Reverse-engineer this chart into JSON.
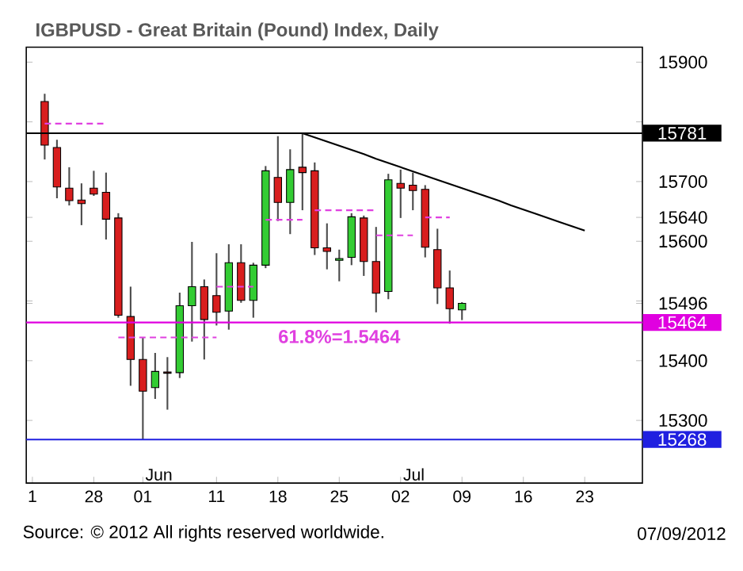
{
  "chart_data": {
    "type": "candlestick",
    "title": "IGBPUSD - Great Britain (Pound) Index, Daily",
    "categories": [
      "1",
      null,
      null,
      null,
      null,
      "28",
      null,
      null,
      null,
      "01",
      null,
      null,
      null,
      null,
      null,
      "11",
      null,
      null,
      null,
      null,
      "18",
      null,
      null,
      null,
      null,
      "25",
      null,
      null,
      null,
      null,
      "02",
      null,
      null,
      null,
      null,
      "09",
      null,
      null,
      null,
      null,
      "16",
      null,
      null,
      null,
      null,
      "23",
      null,
      null,
      null,
      null
    ],
    "ohlc": [
      null,
      [
        15834,
        15847,
        15737,
        15761
      ],
      [
        15757,
        15770,
        15672,
        15691
      ],
      [
        15689,
        15724,
        15660,
        15668
      ],
      [
        15669,
        15697,
        15627,
        15663
      ],
      [
        15689,
        15718,
        15676,
        15679
      ],
      [
        15682,
        15715,
        15603,
        15637
      ],
      [
        15639,
        15647,
        15472,
        15476
      ],
      [
        15474,
        15524,
        15358,
        15402
      ],
      [
        15402,
        15439,
        15268,
        15349
      ],
      [
        15355,
        15413,
        15336,
        15382
      ],
      [
        15381,
        15406,
        15318,
        15379
      ],
      [
        15380,
        15514,
        15371,
        15492
      ],
      [
        15492,
        15599,
        15432,
        15524
      ],
      [
        15524,
        15536,
        15402,
        15469
      ],
      [
        15509,
        15580,
        15459,
        15481
      ],
      [
        15483,
        15595,
        15452,
        15564
      ],
      [
        15564,
        15595,
        15497,
        15501
      ],
      [
        15501,
        15564,
        15472,
        15560
      ],
      [
        15560,
        15726,
        15555,
        15718
      ],
      [
        15707,
        15776,
        15634,
        15665
      ],
      [
        15665,
        15754,
        15612,
        15720
      ],
      [
        15724,
        15781,
        15652,
        15715
      ],
      [
        15718,
        15732,
        15577,
        15589
      ],
      [
        15589,
        15630,
        15553,
        15583
      ],
      [
        15568,
        15586,
        15533,
        15571
      ],
      [
        15573,
        15647,
        15560,
        15641
      ],
      [
        15639,
        15643,
        15542,
        15566
      ],
      [
        15566,
        15624,
        15481,
        15513
      ],
      [
        15516,
        15713,
        15503,
        15703
      ],
      [
        15697,
        15720,
        15639,
        15689
      ],
      [
        15694,
        15715,
        15652,
        15685
      ],
      [
        15687,
        15694,
        15573,
        15590
      ],
      [
        15586,
        15621,
        15495,
        15522
      ],
      [
        15522,
        15551,
        15462,
        15487
      ],
      [
        15485,
        15498,
        15468,
        15496
      ],
      null,
      null,
      null,
      null,
      null,
      null,
      null,
      null,
      null,
      null,
      null,
      null,
      null,
      null
    ],
    "colors": [
      null,
      "#d81e1e",
      "#d81e1e",
      "#d81e1e",
      "#d81e1e",
      "#d81e1e",
      "#d81e1e",
      "#d81e1e",
      "#d81e1e",
      "#d81e1e",
      "#33cc33",
      "#d81e1e",
      "#33cc33",
      "#33cc33",
      "#d81e1e",
      "#d81e1e",
      "#33cc33",
      "#d81e1e",
      "#33cc33",
      "#33cc33",
      "#d81e1e",
      "#33cc33",
      "#d81e1e",
      "#d81e1e",
      "#d81e1e",
      "#33cc33",
      "#33cc33",
      "#d81e1e",
      "#d81e1e",
      "#33cc33",
      "#d81e1e",
      "#d81e1e",
      "#d81e1e",
      "#d81e1e",
      "#d81e1e",
      "#33cc33",
      null,
      null,
      null,
      null,
      null,
      null,
      null,
      null,
      null,
      null,
      null,
      null,
      null,
      null
    ],
    "series": [
      {
        "type": "line",
        "color": "#000000",
        "line_style": "solid",
        "values": [
          null,
          null,
          null,
          null,
          null,
          null,
          null,
          null,
          null,
          null,
          null,
          null,
          null,
          null,
          null,
          null,
          null,
          null,
          null,
          null,
          null,
          null,
          15781,
          15774,
          15767,
          15760,
          15753,
          15746,
          15738,
          15731,
          15724,
          15717,
          15710,
          15703,
          15696,
          15689,
          15682,
          15675,
          15668,
          15660,
          15653,
          15646,
          15639,
          15632,
          15625,
          15618,
          null,
          null,
          null,
          null
        ]
      },
      {
        "type": "line",
        "color": "#e040e0",
        "line_style": "dashed",
        "values": [
          null,
          15797,
          15797,
          15797,
          15797,
          15797,
          15797,
          null,
          null,
          null,
          null,
          null,
          null,
          null,
          null,
          null,
          null,
          null,
          null,
          null,
          null,
          null,
          null,
          null,
          null,
          null,
          null,
          null,
          null,
          null,
          null,
          null,
          null,
          null,
          null,
          null,
          null,
          null,
          null,
          null,
          null,
          null,
          null,
          null,
          null,
          null,
          null,
          null,
          null,
          null
        ]
      },
      {
        "type": "line",
        "color": "#e040e0",
        "line_style": "dashed",
        "values": [
          null,
          null,
          null,
          null,
          null,
          null,
          null,
          15439,
          15439,
          15439,
          15439,
          15439,
          15439,
          15439,
          15439,
          15439,
          null,
          null,
          null,
          null,
          null,
          null,
          null,
          null,
          null,
          null,
          null,
          null,
          null,
          null,
          null,
          null,
          null,
          null,
          null,
          null,
          null,
          null,
          null,
          null,
          null,
          null,
          null,
          null,
          null,
          null,
          null,
          null,
          null,
          null
        ]
      },
      {
        "type": "line",
        "color": "#e040e0",
        "line_style": "dashed",
        "values": [
          null,
          null,
          null,
          null,
          null,
          null,
          null,
          null,
          null,
          null,
          null,
          null,
          null,
          null,
          null,
          15524,
          15524,
          15524,
          15524,
          null,
          null,
          null,
          null,
          null,
          null,
          null,
          null,
          null,
          null,
          null,
          null,
          null,
          null,
          null,
          null,
          null,
          null,
          null,
          null,
          null,
          null,
          null,
          null,
          null,
          null,
          null,
          null,
          null,
          null,
          null
        ]
      },
      {
        "type": "line",
        "color": "#e040e0",
        "line_style": "dashed",
        "values": [
          null,
          null,
          null,
          null,
          null,
          null,
          null,
          null,
          null,
          null,
          null,
          null,
          null,
          null,
          null,
          null,
          null,
          null,
          null,
          15636,
          15636,
          15636,
          15636,
          null,
          null,
          null,
          null,
          null,
          null,
          null,
          null,
          null,
          null,
          null,
          null,
          null,
          null,
          null,
          null,
          null,
          null,
          null,
          null,
          null,
          null,
          null,
          null,
          null,
          null,
          null
        ]
      },
      {
        "type": "line",
        "color": "#e040e0",
        "line_style": "dashed",
        "values": [
          null,
          null,
          null,
          null,
          null,
          null,
          null,
          null,
          null,
          null,
          null,
          null,
          null,
          null,
          null,
          null,
          null,
          null,
          null,
          null,
          null,
          null,
          null,
          15652,
          15652,
          15652,
          15652,
          15652,
          15652,
          null,
          null,
          null,
          null,
          null,
          null,
          null,
          null,
          null,
          null,
          null,
          null,
          null,
          null,
          null,
          null,
          null,
          null,
          null,
          null,
          null
        ]
      },
      {
        "type": "line",
        "color": "#e040e0",
        "line_style": "dashed",
        "values": [
          null,
          null,
          null,
          null,
          null,
          null,
          null,
          null,
          null,
          null,
          null,
          null,
          null,
          null,
          null,
          null,
          null,
          null,
          null,
          null,
          null,
          null,
          null,
          null,
          null,
          null,
          null,
          null,
          15610,
          15610,
          15610,
          15610,
          null,
          null,
          null,
          null,
          null,
          null,
          null,
          null,
          null,
          null,
          null,
          null,
          null,
          null,
          null,
          null,
          null,
          null
        ]
      },
      {
        "type": "line",
        "color": "#e040e0",
        "line_style": "dashed",
        "values": [
          null,
          null,
          null,
          null,
          null,
          null,
          null,
          null,
          null,
          null,
          null,
          null,
          null,
          null,
          null,
          null,
          null,
          null,
          null,
          null,
          null,
          null,
          null,
          null,
          null,
          null,
          null,
          null,
          null,
          null,
          null,
          null,
          15640,
          15640,
          15640,
          null,
          null,
          null,
          null,
          null,
          null,
          null,
          null,
          null,
          null,
          null,
          null,
          null,
          null,
          null
        ]
      }
    ],
    "ylim": [
      15195,
      15925
    ],
    "yticks": [
      15300,
      15400,
      {
        "value": 15500,
        "label": null
      },
      15496,
      15600,
      15640,
      15700,
      {
        "value": 15800,
        "label": null
      },
      15900
    ],
    "ref_lines": [
      {
        "axis": "y",
        "value": 15781,
        "label": "15781",
        "color": "#000000",
        "line_style": "solid"
      },
      {
        "axis": "y",
        "value": 15464,
        "label": "15464",
        "color": "#e000e0",
        "line_style": "solid"
      },
      {
        "axis": "y",
        "value": 15268,
        "label": "15268",
        "color": "#2020e0",
        "line_style": "solid"
      }
    ],
    "annotations": [
      {
        "text": "61.8%=1.5464",
        "x": "25",
        "y": 15464
      },
      "Jun",
      "Jul",
      "Source: © 2012 All rights reserved worldwide.",
      "07/09/2012"
    ]
  }
}
